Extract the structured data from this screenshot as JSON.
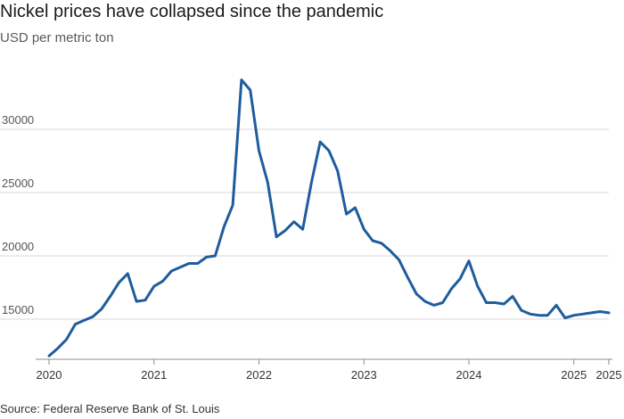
{
  "header": {
    "title": "Nickel prices have collapsed since the pandemic",
    "subtitle": "USD per metric ton"
  },
  "footer": {
    "source": "Source: Federal Reserve Bank of St. Louis"
  },
  "colors": {
    "line": "#1f5c9e",
    "grid": "#d9d9d9",
    "axis": "#8c8c8c"
  },
  "chart_data": {
    "type": "line",
    "title": "Nickel prices have collapsed since the pandemic",
    "ylabel": "USD per metric ton",
    "xlabel": "",
    "ylim": [
      12000,
      34500
    ],
    "yticks": [
      15000,
      20000,
      25000,
      30000
    ],
    "ytick_labels": [
      "15000",
      "20000",
      "25000",
      "30000"
    ],
    "grid": true,
    "xticks": [
      "2020-01",
      "2021-01",
      "2022-01",
      "2023-01",
      "2024-01",
      "2025-01",
      "2025-05"
    ],
    "xtick_labels": [
      "2020",
      "2021",
      "2022",
      "2023",
      "2024",
      "2025",
      "2025"
    ],
    "x_range": [
      "2020-01",
      "2025-05"
    ],
    "series": [
      {
        "x": [
          "2020-01",
          "2020-02",
          "2020-03",
          "2020-04",
          "2020-05",
          "2020-06",
          "2020-07",
          "2020-08",
          "2020-09",
          "2020-10",
          "2020-11",
          "2020-12",
          "2021-01",
          "2021-02",
          "2021-03",
          "2021-04",
          "2021-05",
          "2021-06",
          "2021-07",
          "2021-08",
          "2021-09",
          "2021-10",
          "2021-11",
          "2021-12",
          "2022-01",
          "2022-02",
          "2022-03",
          "2022-04",
          "2022-05",
          "2022-06",
          "2022-07",
          "2022-08",
          "2022-09",
          "2022-10",
          "2022-11",
          "2022-12",
          "2023-01",
          "2023-02",
          "2023-03",
          "2023-04",
          "2023-05",
          "2023-06",
          "2023-07",
          "2023-08",
          "2023-09",
          "2023-10",
          "2023-11",
          "2023-12",
          "2024-01",
          "2024-02",
          "2024-03",
          "2024-04",
          "2024-05",
          "2024-06",
          "2024-07",
          "2024-08",
          "2024-09",
          "2024-10",
          "2024-11",
          "2024-12",
          "2025-01",
          "2025-02",
          "2025-03",
          "2025-04",
          "2025-05"
        ],
        "values": [
          12100,
          12700,
          13400,
          14600,
          14900,
          15200,
          15800,
          16800,
          17900,
          18600,
          16400,
          16500,
          17600,
          18000,
          18800,
          19100,
          19400,
          19400,
          19900,
          20000,
          22300,
          24000,
          33900,
          33100,
          28300,
          25800,
          21500,
          22000,
          22700,
          22100,
          25800,
          29000,
          28300,
          26700,
          23300,
          23800,
          22100,
          21200,
          21000,
          20400,
          19700,
          18300,
          17000,
          16400,
          16100,
          16300,
          17400,
          18200,
          19600,
          17600,
          16300,
          16300,
          16200,
          16800,
          15700,
          15400,
          15300,
          15300,
          16100,
          15100,
          15300,
          15400,
          15500,
          15600,
          15500
        ]
      }
    ]
  }
}
